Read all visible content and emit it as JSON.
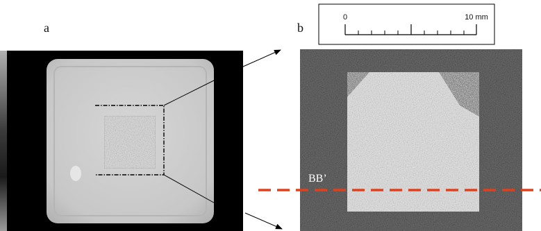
{
  "panels": {
    "a": {
      "label": "a"
    },
    "b": {
      "label": "b"
    }
  },
  "scale_bar": {
    "start_label": "0",
    "end_label": "10 mm"
  },
  "section_line": {
    "label": "BB’",
    "color": "#e0401c"
  },
  "colors": {
    "background": "#000000",
    "specimen": "#c8c8c8",
    "frame": "#000000"
  }
}
